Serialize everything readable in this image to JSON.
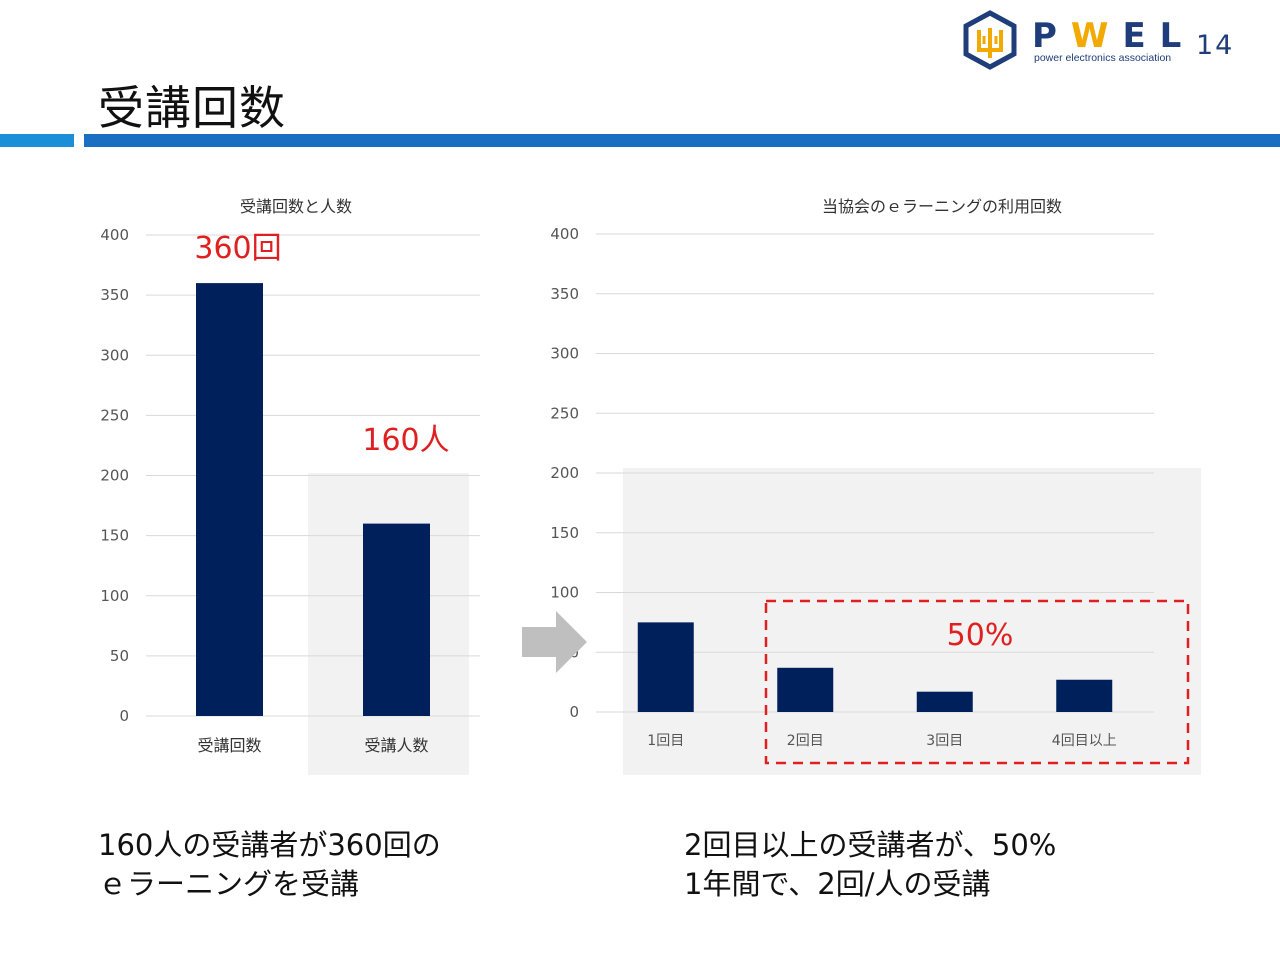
{
  "page": {
    "title": "受講回数",
    "page_number": "14"
  },
  "logo": {
    "letters": [
      "P",
      "W",
      "E",
      "L"
    ],
    "subtitle": "power electronics association"
  },
  "captions": {
    "left_line1": "160人の受講者が360回の",
    "left_line2": "ｅラーニングを受講",
    "right_line1": "2回目以上の受講者が、50%",
    "right_line2": "1年間で、2回/人の受講"
  },
  "colors": {
    "bar": "#00205b",
    "accent_red": "#e02020",
    "highlight_bg": "#f2f2f2",
    "rule_light": "#1a8fd8",
    "rule_dark": "#1a6fc2"
  },
  "chart_data": [
    {
      "type": "bar",
      "title": "受講回数と人数",
      "categories": [
        "受講回数",
        "受講人数"
      ],
      "values": [
        360,
        160
      ],
      "ylim": [
        0,
        400
      ],
      "yticks": [
        0,
        50,
        100,
        150,
        200,
        250,
        300,
        350,
        400
      ],
      "grid": true,
      "annotations": [
        "360回",
        "160人"
      ],
      "highlight_category": "受講人数"
    },
    {
      "type": "bar",
      "title": "当協会のｅラーニングの利用回数",
      "categories": [
        "1回目",
        "2回目",
        "3回目",
        "4回目以上"
      ],
      "values": [
        75,
        37,
        17,
        27
      ],
      "ylim": [
        0,
        400
      ],
      "yticks": [
        0,
        50,
        100,
        150,
        200,
        250,
        300,
        350,
        400
      ],
      "grid": true,
      "annotation": "50%",
      "annotation_covers": [
        "2回目",
        "3回目",
        "4回目以上"
      ]
    }
  ]
}
